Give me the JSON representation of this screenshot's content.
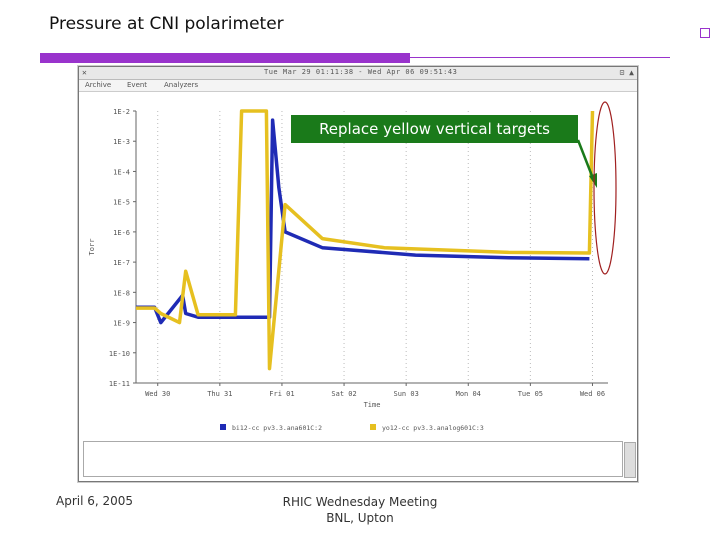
{
  "slide": {
    "title": "Pressure at CNI polarimeter",
    "footer_left": "April 6, 2005",
    "footer_center_line1": "RHIC Wednesday Meeting",
    "footer_center_line2": "BNL, Upton",
    "accent_color": "#9933cc"
  },
  "window": {
    "close_glyph": "✕",
    "title": "Tue Mar 29 01:11:38 - Wed Apr 06 09:51:43",
    "controls": "⊡  ▲",
    "menu": [
      "Archive",
      "Event",
      "Analyzers"
    ]
  },
  "callout": {
    "text": "Replace yellow vertical targets",
    "color": "#1a7a1a"
  },
  "chart_data": {
    "type": "line",
    "ylabel": "Torr",
    "xlabel": "Time",
    "y_log_scale": true,
    "y_ticks": [
      "1E-2",
      "1E-3",
      "1E-4",
      "1E-5",
      "1E-6",
      "1E-7",
      "1E-8",
      "1E-9",
      "1E-10",
      "1E-11"
    ],
    "x_ticks": [
      "Wed 30",
      "Thu 31",
      "Fri 01",
      "Sat 02",
      "Sun 03",
      "Mon 04",
      "Tue 05",
      "Wed 06"
    ],
    "grid": "vertical dotted",
    "legend_placement": "bottom",
    "series": [
      {
        "name": "bi12-cc pv3.3.ana601C:2",
        "color": "#1f2bb5",
        "points": [
          [
            0,
            3.2e-09
          ],
          [
            0.3,
            3.2e-09
          ],
          [
            0.4,
            1e-09
          ],
          [
            0.75,
            8e-09
          ],
          [
            0.8,
            2e-09
          ],
          [
            1.0,
            1.5e-09
          ],
          [
            2.15,
            1.5e-09
          ],
          [
            2.2,
            0.005
          ],
          [
            2.3,
            3e-05
          ],
          [
            2.4,
            1e-06
          ],
          [
            3.0,
            3e-07
          ],
          [
            4.5,
            1.7e-07
          ],
          [
            6.0,
            1.4e-07
          ],
          [
            7.3,
            1.3e-07
          ]
        ]
      },
      {
        "name": "yo12-cc pv3.3.analog601C:3",
        "color": "#e6c020",
        "points": [
          [
            0,
            3e-09
          ],
          [
            0.3,
            3e-09
          ],
          [
            0.4,
            2e-09
          ],
          [
            0.7,
            1e-09
          ],
          [
            0.8,
            5e-08
          ],
          [
            1.0,
            1.8e-09
          ],
          [
            1.6,
            1.8e-09
          ],
          [
            1.7,
            0.01
          ],
          [
            2.1,
            0.01
          ],
          [
            2.15,
            3e-11
          ],
          [
            2.4,
            8e-06
          ],
          [
            3.0,
            6e-07
          ],
          [
            4.0,
            3e-07
          ],
          [
            6.0,
            2.1e-07
          ],
          [
            7.3,
            2e-07
          ],
          [
            7.35,
            0.01
          ]
        ]
      }
    ]
  }
}
